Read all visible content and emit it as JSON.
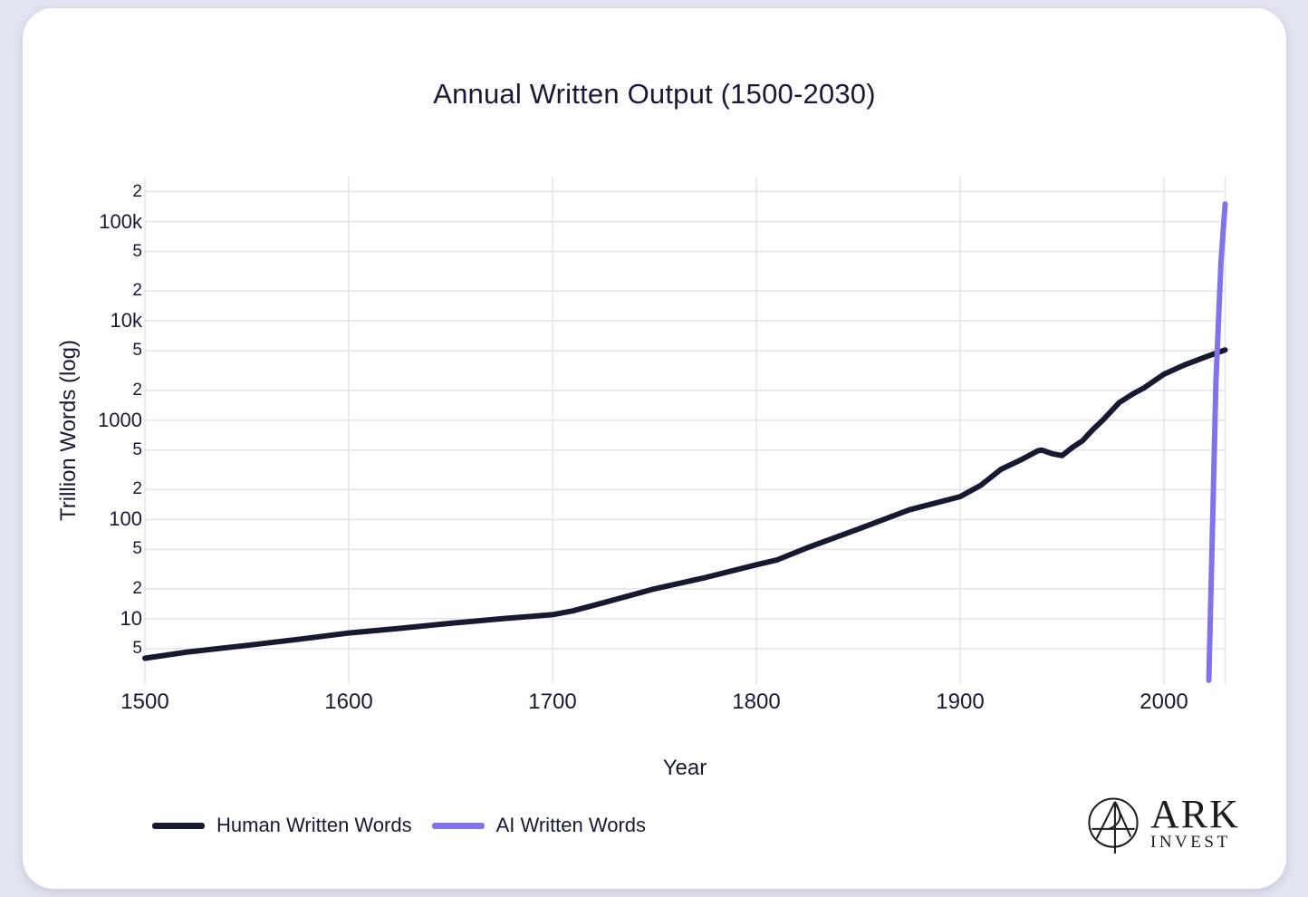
{
  "page": {
    "background_color": "#e3e4f1",
    "card_color": "#ffffff"
  },
  "chart": {
    "title": "Annual Written Output (1500-2030)",
    "x_axis_label": "Year",
    "y_axis_label": "Trillion Words (log)"
  },
  "chart_data": {
    "type": "line",
    "title": "Annual Written Output (1500-2030)",
    "xlabel": "Year",
    "ylabel": "Trillion Words (log)",
    "x_scale": "linear",
    "y_scale": "log",
    "xlim": [
      1500,
      2030
    ],
    "ylim": [
      2.2,
      283000
    ],
    "grid": true,
    "legend_position": "bottom-left",
    "colors": {
      "grid": "#e4e5e9",
      "text": "#181a35",
      "human_line": "#171931",
      "ai_line": "#8173e9"
    },
    "x_ticks": [
      1500,
      1600,
      1700,
      1800,
      1900,
      2000
    ],
    "y_ticks": [
      {
        "label": "2",
        "value": 200000,
        "minor": true
      },
      {
        "label": "100k",
        "value": 100000,
        "minor": false
      },
      {
        "label": "5",
        "value": 50000,
        "minor": true
      },
      {
        "label": "2",
        "value": 20000,
        "minor": true
      },
      {
        "label": "10k",
        "value": 10000,
        "minor": false
      },
      {
        "label": "5",
        "value": 5000,
        "minor": true
      },
      {
        "label": "2",
        "value": 2000,
        "minor": true
      },
      {
        "label": "1000",
        "value": 1000,
        "minor": false
      },
      {
        "label": "5",
        "value": 500,
        "minor": true
      },
      {
        "label": "2",
        "value": 200,
        "minor": true
      },
      {
        "label": "100",
        "value": 100,
        "minor": false
      },
      {
        "label": "5",
        "value": 50,
        "minor": true
      },
      {
        "label": "2",
        "value": 20,
        "minor": true
      },
      {
        "label": "10",
        "value": 10,
        "minor": false
      },
      {
        "label": "5",
        "value": 5,
        "minor": true
      }
    ],
    "series": [
      {
        "name": "Human Written Words",
        "color": "#171931",
        "points": [
          [
            1500,
            4
          ],
          [
            1520,
            4.6
          ],
          [
            1550,
            5.4
          ],
          [
            1575,
            6.2
          ],
          [
            1600,
            7.2
          ],
          [
            1625,
            8
          ],
          [
            1650,
            9
          ],
          [
            1675,
            10
          ],
          [
            1700,
            11
          ],
          [
            1710,
            12
          ],
          [
            1725,
            14.5
          ],
          [
            1750,
            20
          ],
          [
            1775,
            26
          ],
          [
            1800,
            35
          ],
          [
            1810,
            39
          ],
          [
            1825,
            52
          ],
          [
            1850,
            80
          ],
          [
            1875,
            125
          ],
          [
            1900,
            170
          ],
          [
            1910,
            220
          ],
          [
            1920,
            320
          ],
          [
            1930,
            400
          ],
          [
            1938,
            490
          ],
          [
            1940,
            500
          ],
          [
            1945,
            460
          ],
          [
            1950,
            440
          ],
          [
            1955,
            530
          ],
          [
            1960,
            620
          ],
          [
            1965,
            800
          ],
          [
            1970,
            1000
          ],
          [
            1978,
            1500
          ],
          [
            1985,
            1850
          ],
          [
            1990,
            2100
          ],
          [
            2000,
            2900
          ],
          [
            2010,
            3600
          ],
          [
            2020,
            4300
          ],
          [
            2030,
            5100
          ]
        ]
      },
      {
        "name": "AI Written Words",
        "color": "#8173e9",
        "points": [
          [
            2022,
            2.4
          ],
          [
            2024,
            120
          ],
          [
            2025.5,
            2500
          ],
          [
            2028,
            40000
          ],
          [
            2030,
            150000
          ]
        ]
      }
    ]
  },
  "branding": {
    "name": "ARK",
    "sub": "INVEST"
  }
}
